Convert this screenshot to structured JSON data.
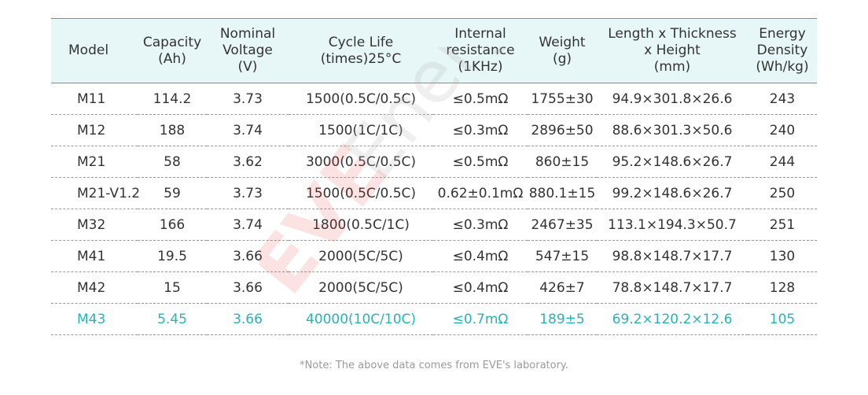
{
  "table": {
    "headers": [
      [
        "Model"
      ],
      [
        "Capacity",
        "(Ah)"
      ],
      [
        "Nominal",
        "Voltage",
        "(V)"
      ],
      [
        "Cycle Life",
        "(times)25°C"
      ],
      [
        "Internal",
        "resistance",
        "(1KHz)"
      ],
      [
        "Weight",
        "(g)"
      ],
      [
        "Length x Thickness",
        "x Height",
        "(mm)"
      ],
      [
        "Energy",
        "Density",
        "(Wh/kg)"
      ]
    ],
    "rows": [
      [
        "M11",
        "114.2",
        "3.73",
        "1500(0.5C/0.5C)",
        "≤0.5mΩ",
        "1755±30",
        "94.9×301.8×26.6",
        "243"
      ],
      [
        "M12",
        "188",
        "3.74",
        "1500(1C/1C)",
        "≤0.3mΩ",
        "2896±50",
        "88.6×301.3×50.6",
        "240"
      ],
      [
        "M21",
        "58",
        "3.62",
        "3000(0.5C/0.5C)",
        "≤0.5mΩ",
        "860±15",
        "95.2×148.6×26.7",
        "244"
      ],
      [
        "M21-V1.2",
        "59",
        "3.73",
        "1500(0.5C/0.5C)",
        "0.62±0.1mΩ",
        "880.1±15",
        "99.2×148.6×26.7",
        "250"
      ],
      [
        "M32",
        "166",
        "3.74",
        "1800(0.5C/1C)",
        "≤0.3mΩ",
        "2467±35",
        "113.1×194.3×50.7",
        "251"
      ],
      [
        "M41",
        "19.5",
        "3.66",
        "2000(5C/5C)",
        "≤0.4mΩ",
        "547±15",
        "98.8×148.7×17.7",
        "130"
      ],
      [
        "M42",
        "15",
        "3.66",
        "2000(5C/5C)",
        "≤0.4mΩ",
        "426±7",
        "78.8×148.7×17.7",
        "128"
      ],
      [
        "M43",
        "5.45",
        "3.66",
        "40000(10C/10C)",
        "≤0.7mΩ",
        "189±5",
        "69.2×120.2×12.6",
        "105"
      ]
    ],
    "highlight_row_index": 7
  },
  "note": "*Note: The above data comes from EVE's laboratory.",
  "watermark": {
    "brand": "EVE",
    "word": "Energy",
    "colors": {
      "brand": "#e8383b",
      "word": "#cccccc"
    }
  },
  "colors": {
    "header_bg": "#e7f6f6",
    "header_rule": "#2bb2b2",
    "highlight_text": "#25b4b4",
    "body_text": "#333333",
    "note_text": "#9a9a9a"
  }
}
